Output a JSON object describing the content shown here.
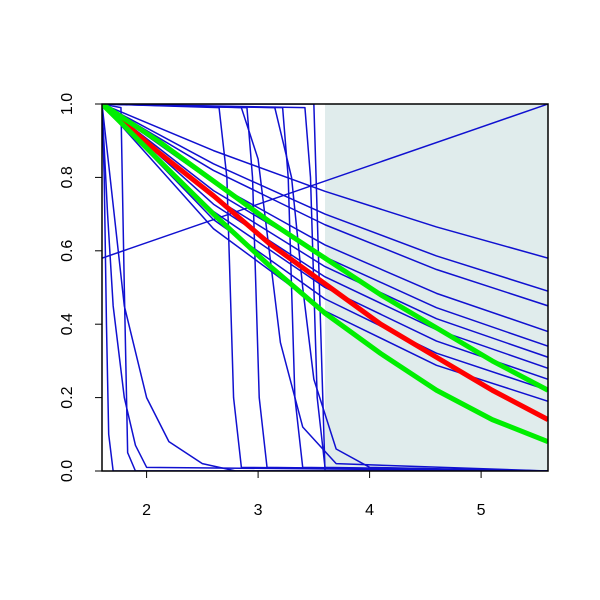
{
  "chart_data": {
    "type": "line",
    "xlim": [
      1.6,
      5.6
    ],
    "ylim": [
      0,
      1
    ],
    "xticks": [
      2,
      3,
      4,
      5
    ],
    "yticks": [
      {
        "value": 0,
        "label": "0.0"
      },
      {
        "value": 0.2,
        "label": "0.2"
      },
      {
        "value": 0.4,
        "label": "0.4"
      },
      {
        "value": 0.6,
        "label": "0.6"
      },
      {
        "value": 0.8,
        "label": "0.8"
      },
      {
        "value": 1,
        "label": "1.0"
      }
    ],
    "shaded_xlim": [
      3.6,
      5.6
    ],
    "shade_color": "#e0ecec",
    "series": [
      {
        "color": "#1010d0",
        "line_width": 1.5,
        "x": [
          1.6,
          5.6
        ],
        "values": [
          0.58,
          1.0
        ]
      },
      {
        "color": "#1010d0",
        "line_width": 1.5,
        "x": [
          1.6,
          2.6,
          3.6,
          4.6,
          5.6
        ],
        "values": [
          1,
          0.873,
          0.762,
          0.665,
          0.58
        ]
      },
      {
        "color": "#1010d0",
        "line_width": 1.5,
        "x": [
          1.6,
          2.6,
          3.6,
          4.6,
          5.6
        ],
        "values": [
          1,
          0.837,
          0.7,
          0.586,
          0.49
        ]
      },
      {
        "color": "#1010d0",
        "line_width": 1.5,
        "x": [
          1.6,
          2.6,
          3.6,
          4.6,
          5.6
        ],
        "values": [
          1,
          0.819,
          0.671,
          0.549,
          0.45
        ]
      },
      {
        "color": "#1010d0",
        "line_width": 1.5,
        "x": [
          1.6,
          2.6,
          3.6,
          4.6,
          5.6
        ],
        "values": [
          1,
          0.785,
          0.616,
          0.484,
          0.38
        ]
      },
      {
        "color": "#1010d0",
        "line_width": 1.5,
        "x": [
          1.6,
          2.6,
          3.6,
          4.6,
          5.6
        ],
        "values": [
          1,
          0.764,
          0.583,
          0.445,
          0.34
        ]
      },
      {
        "color": "#1010d0",
        "line_width": 1.5,
        "x": [
          1.6,
          2.6,
          3.6,
          4.6,
          5.6
        ],
        "values": [
          1,
          0.746,
          0.557,
          0.415,
          0.31
        ]
      },
      {
        "color": "#1010d0",
        "line_width": 1.5,
        "x": [
          1.6,
          2.6,
          3.6,
          4.6,
          5.6
        ],
        "values": [
          1,
          0.727,
          0.529,
          0.385,
          0.28
        ]
      },
      {
        "color": "#1010d0",
        "line_width": 1.5,
        "x": [
          1.6,
          2.6,
          3.6,
          4.6,
          5.6
        ],
        "values": [
          1,
          0.707,
          0.5,
          0.354,
          0.25
        ]
      },
      {
        "color": "#1010d0",
        "line_width": 1.5,
        "x": [
          1.6,
          2.6,
          3.6,
          4.6,
          5.6
        ],
        "values": [
          1,
          0.685,
          0.469,
          0.321,
          0.22
        ]
      },
      {
        "color": "#1010d0",
        "line_width": 1.5,
        "x": [
          1.6,
          2.6,
          3.6,
          4.6,
          5.6
        ],
        "values": [
          1,
          0.66,
          0.436,
          0.288,
          0.19
        ]
      },
      {
        "color": "#1010d0",
        "line_width": 1.5,
        "x": [
          1.6,
          1.62,
          1.64,
          1.66,
          1.7,
          5.6
        ],
        "values": [
          1,
          0.8,
          0.4,
          0.1,
          0,
          0
        ]
      },
      {
        "color": "#1010d0",
        "line_width": 1.5,
        "x": [
          1.6,
          1.65,
          1.7,
          1.8,
          1.9,
          2.0,
          5.6
        ],
        "values": [
          1,
          0.7,
          0.45,
          0.2,
          0.07,
          0.01,
          0
        ]
      },
      {
        "color": "#1010d0",
        "line_width": 1.5,
        "x": [
          1.6,
          1.77,
          1.8,
          1.83,
          1.9,
          5.6
        ],
        "values": [
          1,
          0.99,
          0.5,
          0.05,
          0,
          0
        ]
      },
      {
        "color": "#1010d0",
        "line_width": 1.5,
        "x": [
          1.6,
          1.8,
          2.0,
          2.2,
          2.5,
          2.8,
          5.6
        ],
        "values": [
          1,
          0.45,
          0.2,
          0.08,
          0.02,
          0,
          0
        ]
      },
      {
        "color": "#1010d0",
        "line_width": 1.5,
        "x": [
          1.6,
          2.65,
          2.72,
          2.75,
          2.78,
          2.85,
          5.6
        ],
        "values": [
          1,
          0.99,
          0.8,
          0.5,
          0.2,
          0.01,
          0
        ]
      },
      {
        "color": "#1010d0",
        "line_width": 1.5,
        "x": [
          1.6,
          2.9,
          2.95,
          2.98,
          3.01,
          3.08,
          5.6
        ],
        "values": [
          1,
          0.99,
          0.8,
          0.5,
          0.2,
          0.01,
          0
        ]
      },
      {
        "color": "#1010d0",
        "line_width": 1.5,
        "x": [
          1.6,
          2.85,
          3.0,
          3.1,
          3.2,
          3.4,
          3.7,
          5.6
        ],
        "values": [
          1,
          0.99,
          0.85,
          0.6,
          0.35,
          0.12,
          0.02,
          0
        ]
      },
      {
        "color": "#1010d0",
        "line_width": 1.5,
        "x": [
          1.6,
          3.22,
          3.27,
          3.3,
          3.33,
          3.4,
          5.6
        ],
        "values": [
          1,
          0.99,
          0.8,
          0.5,
          0.2,
          0.01,
          0
        ]
      },
      {
        "color": "#1010d0",
        "line_width": 1.5,
        "x": [
          1.6,
          3.15,
          3.3,
          3.4,
          3.5,
          3.7,
          4.0,
          5.6
        ],
        "values": [
          1,
          0.99,
          0.8,
          0.5,
          0.25,
          0.06,
          0.01,
          0
        ]
      },
      {
        "color": "#1010d0",
        "line_width": 1.5,
        "x": [
          1.6,
          3.42,
          3.47,
          3.5,
          3.53,
          3.6,
          5.6
        ],
        "values": [
          1,
          0.99,
          0.8,
          0.5,
          0.2,
          0.01,
          0
        ]
      },
      {
        "color": "#1010d0",
        "line_width": 1.5,
        "x": [
          1.6,
          3.5,
          3.6,
          5.6
        ],
        "values": [
          1,
          1,
          0,
          0
        ]
      },
      {
        "color": "#ff0000",
        "line_width": 5,
        "x": [
          1.6,
          2.1,
          2.6,
          3.1,
          3.6,
          4.1,
          4.6,
          5.1,
          5.6
        ],
        "values": [
          1,
          0.87,
          0.75,
          0.62,
          0.51,
          0.4,
          0.31,
          0.22,
          0.14
        ]
      },
      {
        "color": "#00ee00",
        "line_width": 5,
        "x": [
          1.6,
          2.1,
          2.6,
          3.1,
          3.6,
          4.1,
          4.6,
          5.1,
          5.6
        ],
        "values": [
          1,
          0.85,
          0.7,
          0.56,
          0.43,
          0.32,
          0.22,
          0.14,
          0.08
        ]
      },
      {
        "color": "#00ee00",
        "line_width": 5,
        "x": [
          1.6,
          2.1,
          2.6,
          3.1,
          3.6,
          4.1,
          4.6,
          5.1,
          5.6
        ],
        "values": [
          1,
          0.9,
          0.79,
          0.68,
          0.58,
          0.48,
          0.39,
          0.3,
          0.22
        ]
      }
    ]
  }
}
